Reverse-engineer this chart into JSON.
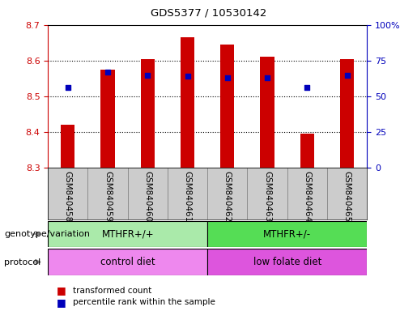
{
  "title": "GDS5377 / 10530142",
  "samples": [
    "GSM840458",
    "GSM840459",
    "GSM840460",
    "GSM840461",
    "GSM840462",
    "GSM840463",
    "GSM840464",
    "GSM840465"
  ],
  "bar_values": [
    8.42,
    8.575,
    8.605,
    8.665,
    8.645,
    8.61,
    8.395,
    8.605
  ],
  "percentile_values": [
    56,
    67,
    65,
    64,
    63,
    63,
    56,
    65
  ],
  "ylim_left": [
    8.3,
    8.7
  ],
  "ylim_right": [
    0,
    100
  ],
  "yticks_left": [
    8.3,
    8.4,
    8.5,
    8.6,
    8.7
  ],
  "yticks_right": [
    0,
    25,
    50,
    75,
    100
  ],
  "bar_color": "#cc0000",
  "dot_color": "#0000bb",
  "bar_width": 0.35,
  "bar_bottom": 8.3,
  "genotype_groups": [
    {
      "label": "MTHFR+/+",
      "start": 0,
      "end": 4,
      "color": "#aaeaaa"
    },
    {
      "label": "MTHFR+/-",
      "start": 4,
      "end": 8,
      "color": "#55dd55"
    }
  ],
  "protocol_groups": [
    {
      "label": "control diet",
      "start": 0,
      "end": 4,
      "color": "#ee88ee"
    },
    {
      "label": "low folate diet",
      "start": 4,
      "end": 8,
      "color": "#dd55dd"
    }
  ],
  "legend_items": [
    {
      "label": "transformed count",
      "color": "#cc0000"
    },
    {
      "label": "percentile rank within the sample",
      "color": "#0000bb"
    }
  ],
  "background_color": "#ffffff",
  "tick_box_color": "#cccccc",
  "grid_color": "#000000",
  "left_axis_color": "#cc0000",
  "right_axis_color": "#0000bb",
  "left_label": "genotype/variation",
  "protocol_label": "protocol"
}
